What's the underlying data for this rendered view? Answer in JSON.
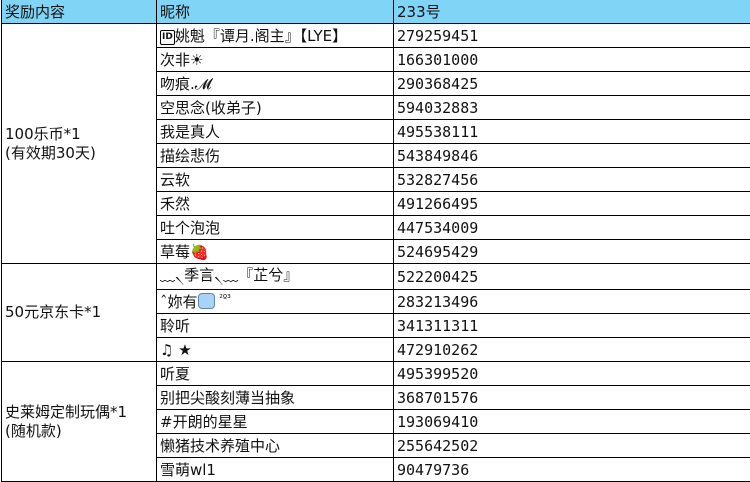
{
  "colors": {
    "header_bg": "#80d4f6",
    "grid": "#000000"
  },
  "headers": [
    "奖励内容",
    "昵称",
    "233号"
  ],
  "groups": [
    {
      "reward_line1": "100乐币*1",
      "reward_line2": "(有效期30天)",
      "rows": [
        {
          "name": "姚魁『谭月.阁主』【LYE】",
          "icon": "id-badge-icon",
          "icon_text": "ID",
          "id": "279259451"
        },
        {
          "name": "次非☀",
          "id": "166301000"
        },
        {
          "name": "吻痕.𝓜",
          "id": "290368425"
        },
        {
          "name": "空思念(收弟子)",
          "id": "594032883"
        },
        {
          "name": "我是真人",
          "id": "495538111"
        },
        {
          "name": "描绘悲伤",
          "id": "543849846"
        },
        {
          "name": "云软",
          "id": "532827456"
        },
        {
          "name": "禾然",
          "id": "491266495"
        },
        {
          "name": "吐个泡泡",
          "id": "447534009"
        },
        {
          "name": "草莓🍓",
          "id": "524695429"
        }
      ]
    },
    {
      "reward_line1": "50元京东卡*1",
      "reward_line2": "",
      "rows": [
        {
          "name": "﹏৲季言৲﹏『芷兮』",
          "id": "522200425"
        },
        {
          "name": "ˆ妳有",
          "icon": "ice-cube-icon",
          "suffix": "²º³",
          "id": "283213496"
        },
        {
          "name": "聆听",
          "id": "341311311"
        },
        {
          "name": "♫ ★",
          "id": "472910262"
        }
      ]
    },
    {
      "reward_line1": "史莱姆定制玩偶*1",
      "reward_line2": "(随机款)",
      "rows": [
        {
          "name": "听夏",
          "id": "495399520"
        },
        {
          "name": "别把尖酸刻薄当抽象",
          "id": "368701576"
        },
        {
          "name": "#开朗的星星",
          "id": "193069410"
        },
        {
          "name": "懒猪技术养殖中心",
          "id": "255642502"
        },
        {
          "name": "雪萌wl1",
          "id": "90479736"
        }
      ]
    }
  ]
}
